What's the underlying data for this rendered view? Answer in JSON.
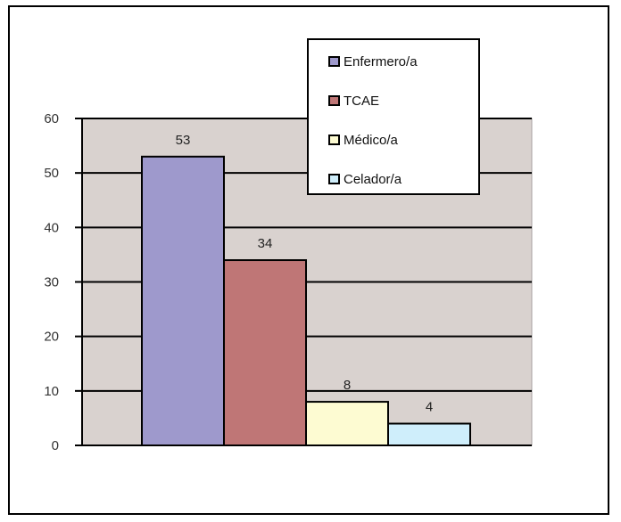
{
  "chart_data": {
    "type": "bar",
    "series": [
      {
        "name": "Enfermero/a",
        "values": [
          53
        ],
        "color": "#9e99cc"
      },
      {
        "name": "TCAE",
        "values": [
          34
        ],
        "color": "#bf7676"
      },
      {
        "name": "Médico/a",
        "values": [
          8
        ],
        "color": "#fdfbd2"
      },
      {
        "name": "Celador/a",
        "values": [
          4
        ],
        "color": "#cfeefb"
      }
    ],
    "ylim": [
      0,
      60
    ],
    "yticks": [
      0,
      10,
      20,
      30,
      40,
      50,
      60
    ],
    "data_labels": [
      "53",
      "34",
      "8",
      "4"
    ],
    "grid": true,
    "legend_position": "top-right",
    "plot_background": "#d9d2cf"
  }
}
